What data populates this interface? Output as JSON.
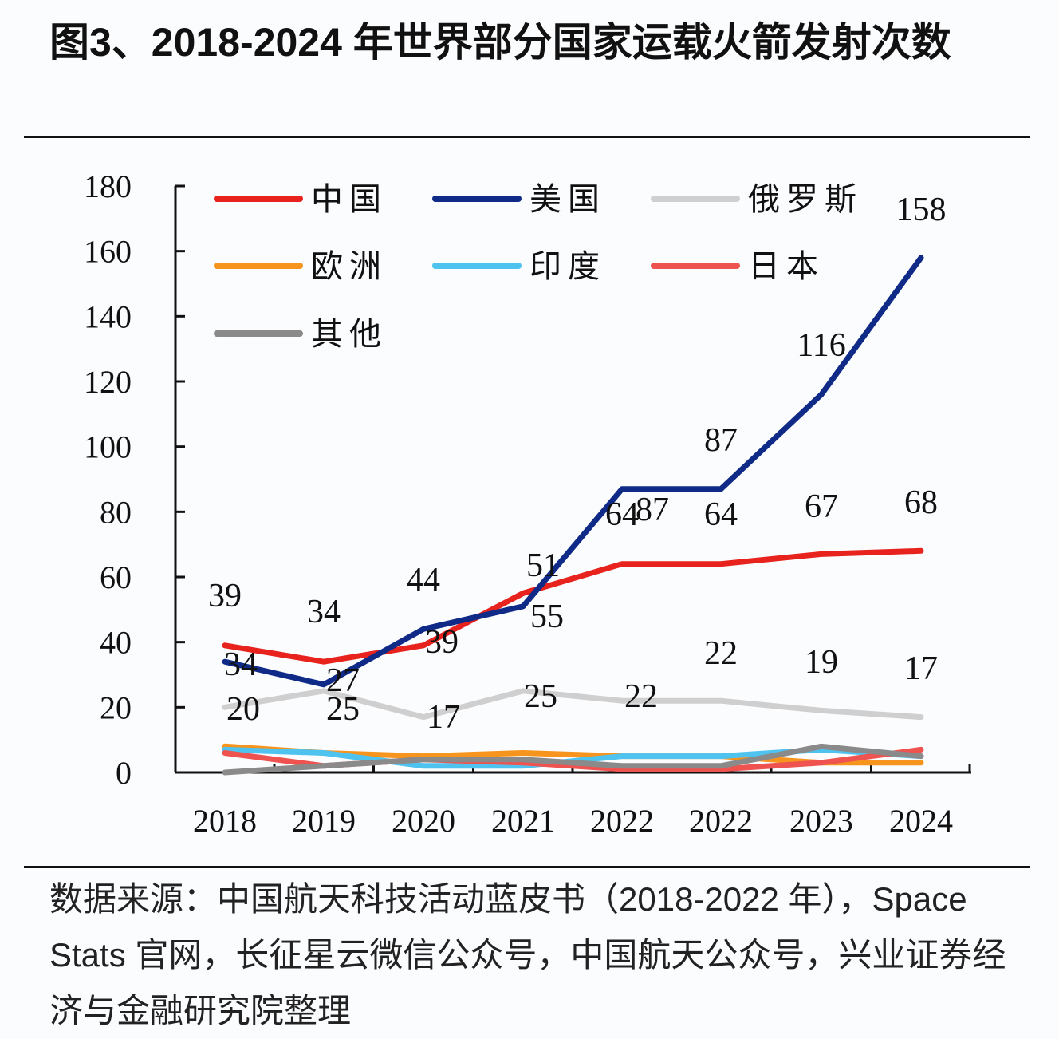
{
  "title": "图3、2018-2024 年世界部分国家运载火箭发射次数",
  "source": "数据来源：中国航天科技活动蓝皮书（2018-2022 年），Space Stats 官网，长征星云微信公众号，中国航天公众号，兴业证券经济与金融研究院整理",
  "chart_data": {
    "type": "line",
    "title": "2018-2024 年世界部分国家运载火箭发射次数",
    "xlabel": "",
    "ylabel": "",
    "categories": [
      "2018",
      "2019",
      "2020",
      "2021",
      "2022",
      "2022",
      "2023",
      "2024"
    ],
    "ylim": [
      0,
      180
    ],
    "yticks": [
      0,
      20,
      40,
      60,
      80,
      100,
      120,
      140,
      160,
      180
    ],
    "grid": false,
    "legend_position": "top-left",
    "series": [
      {
        "name": "中国",
        "color": "#e8221c",
        "values": [
          39,
          34,
          39,
          55,
          64,
          64,
          67,
          68
        ]
      },
      {
        "name": "美国",
        "color": "#0f2a87",
        "values": [
          34,
          27,
          44,
          51,
          87,
          87,
          116,
          158
        ]
      },
      {
        "name": "俄罗斯",
        "color": "#cfcfcf",
        "values": [
          20,
          25,
          17,
          25,
          22,
          22,
          19,
          17
        ]
      },
      {
        "name": "欧洲",
        "color": "#f7941d",
        "values": [
          8,
          6,
          5,
          6,
          5,
          5,
          3,
          3
        ]
      },
      {
        "name": "印度",
        "color": "#4fc3f0",
        "values": [
          7,
          6,
          2,
          2,
          5,
          5,
          7,
          5
        ]
      },
      {
        "name": "日本",
        "color": "#ef5350",
        "values": [
          6,
          2,
          4,
          3,
          1,
          1,
          3,
          7
        ]
      },
      {
        "name": "其他",
        "color": "#8a8a8a",
        "values": [
          0,
          2,
          4,
          4,
          2,
          2,
          8,
          5
        ]
      }
    ],
    "data_labels": [
      {
        "series": "中国",
        "values": [
          39,
          34,
          39,
          55,
          64,
          64,
          67,
          68
        ]
      },
      {
        "series": "美国",
        "values": [
          34,
          27,
          44,
          51,
          87,
          87,
          116,
          158
        ]
      },
      {
        "series": "俄罗斯",
        "values": [
          20,
          25,
          17,
          25,
          22,
          22,
          19,
          17
        ]
      }
    ]
  }
}
